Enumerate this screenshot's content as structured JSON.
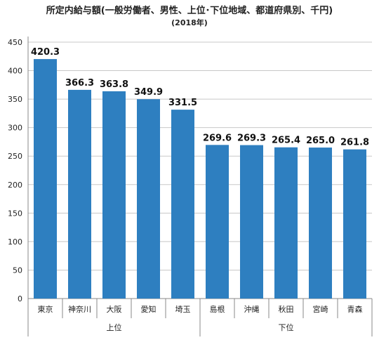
{
  "chart_data": {
    "type": "bar",
    "title": "所定内給与額(一般労働者、男性、上位･下位地域、都道府県別、千円)",
    "subtitle": "(2018年)",
    "categories": [
      "東京",
      "神奈川",
      "大阪",
      "愛知",
      "埼玉",
      "島根",
      "沖縄",
      "秋田",
      "宮崎",
      "青森"
    ],
    "values": [
      420.3,
      366.3,
      363.8,
      349.9,
      331.5,
      269.6,
      269.3,
      265.4,
      265.0,
      261.8
    ],
    "value_labels": [
      "420.3",
      "366.3",
      "363.8",
      "349.9",
      "331.5",
      "269.6",
      "269.3",
      "265.4",
      "265.0",
      "261.8"
    ],
    "groups": [
      {
        "label": "上位",
        "start": 0,
        "end": 4
      },
      {
        "label": "下位",
        "start": 5,
        "end": 9
      }
    ],
    "ylim": [
      0,
      450
    ],
    "yticks": [
      "0",
      "50",
      "100",
      "150",
      "200",
      "250",
      "300",
      "350",
      "400",
      "450"
    ],
    "grid": true,
    "colors": {
      "bar": "#2e7fc0",
      "grid": "#c8c8c8",
      "axis": "#888888"
    }
  }
}
